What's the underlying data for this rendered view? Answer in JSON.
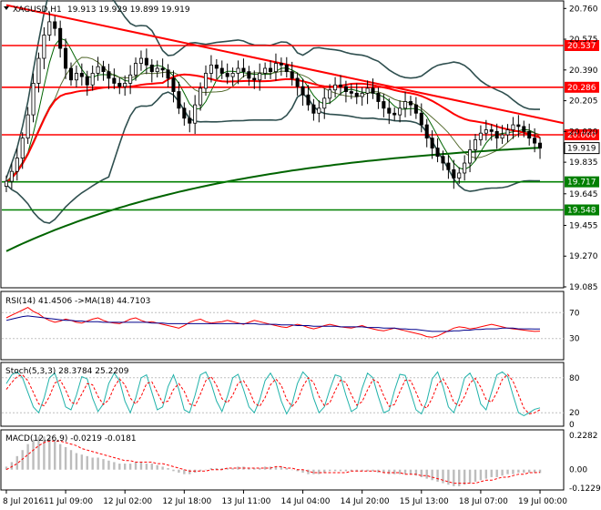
{
  "chart_data": [
    {
      "type": "candlestick",
      "panel": "price",
      "title": "XAGUSD,H1",
      "ohlc_readout": [
        "19.913",
        "19.929",
        "19.899",
        "19.919"
      ],
      "ylim": [
        19.085,
        20.8
      ],
      "y_ticks": [
        20.76,
        20.575,
        20.39,
        20.205,
        20.02,
        19.835,
        19.645,
        19.455,
        19.27,
        19.085
      ],
      "last_price_label": "19.919",
      "horizontal_levels": [
        {
          "label": "20.537",
          "value": 20.537,
          "color": "#ff0000"
        },
        {
          "label": "20.286",
          "value": 20.286,
          "color": "#ff0000"
        },
        {
          "label": "20.000",
          "value": 20.0,
          "color": "#ff0000"
        },
        {
          "label": "19.717",
          "value": 19.717,
          "color": "#008000"
        },
        {
          "label": "19.548",
          "value": 19.548,
          "color": "#008000"
        }
      ],
      "trendline": {
        "from": [
          0,
          20.78
        ],
        "to": [
          100,
          20.07
        ],
        "color": "#ff0000"
      },
      "close_series": [
        19.72,
        19.78,
        19.86,
        19.98,
        20.12,
        20.31,
        20.46,
        20.6,
        20.68,
        20.64,
        20.52,
        20.4,
        20.33,
        20.37,
        20.35,
        20.3,
        20.37,
        20.41,
        20.38,
        20.34,
        20.31,
        20.29,
        20.31,
        20.36,
        20.43,
        20.46,
        20.42,
        20.38,
        20.4,
        20.39,
        20.34,
        20.26,
        20.16,
        20.1,
        20.07,
        20.18,
        20.28,
        20.37,
        20.42,
        20.4,
        20.37,
        20.35,
        20.37,
        20.4,
        20.38,
        20.34,
        20.33,
        20.37,
        20.4,
        20.38,
        20.43,
        20.42,
        20.38,
        20.34,
        20.29,
        20.24,
        20.18,
        20.13,
        20.16,
        20.22,
        20.27,
        20.3,
        20.29,
        20.26,
        20.25,
        20.23,
        20.25,
        20.28,
        20.25,
        20.2,
        20.16,
        20.13,
        20.12,
        20.16,
        20.2,
        20.18,
        20.13,
        20.06,
        19.98,
        19.92,
        19.87,
        19.83,
        19.79,
        19.74,
        19.77,
        19.83,
        19.91,
        19.97,
        20.01,
        20.03,
        20.02,
        19.98,
        20.0,
        20.03,
        20.06,
        20.05,
        20.02,
        19.98,
        19.95,
        19.92
      ],
      "x_ticks": [
        {
          "index": 0,
          "label": "8 Jul 2016"
        },
        {
          "index": 11,
          "label": "11 Jul 09:00"
        },
        {
          "index": 22,
          "label": "12 Jul 02:00"
        },
        {
          "index": 33,
          "label": "12 Jul 18:00"
        },
        {
          "index": 44,
          "label": "13 Jul 11:00"
        },
        {
          "index": 55,
          "label": "14 Jul 04:00"
        },
        {
          "index": 66,
          "label": "14 Jul 20:00"
        },
        {
          "index": 77,
          "label": "15 Jul 13:00"
        },
        {
          "index": 88,
          "label": "18 Jul 07:00"
        },
        {
          "index": 99,
          "label": "19 Jul 00:00"
        }
      ],
      "colors": {
        "up": "#000000",
        "down": "#000000",
        "ma_fast": "#006400",
        "ma_slow": "#006400",
        "ma_red": "#ff0000",
        "bollinger": "#2f4f4f"
      }
    },
    {
      "type": "line",
      "panel": "rsi",
      "title": "RSI(14) 41.4506 ->MA(18) 44.7103",
      "ylim": [
        0,
        100
      ],
      "y_ticks": [
        70,
        30
      ],
      "levels": [
        70,
        30
      ],
      "series": [
        {
          "name": "RSI(14)",
          "color": "#ff0000",
          "values": [
            62,
            66,
            70,
            74,
            78,
            72,
            68,
            62,
            58,
            55,
            57,
            60,
            58,
            55,
            54,
            57,
            60,
            62,
            58,
            55,
            54,
            53,
            56,
            60,
            62,
            58,
            55,
            56,
            54,
            52,
            50,
            48,
            46,
            50,
            55,
            58,
            60,
            56,
            54,
            55,
            56,
            58,
            56,
            54,
            52,
            55,
            58,
            56,
            54,
            52,
            50,
            48,
            47,
            50,
            52,
            50,
            47,
            45,
            47,
            50,
            52,
            50,
            48,
            47,
            46,
            48,
            50,
            47,
            45,
            43,
            42,
            44,
            46,
            44,
            42,
            40,
            38,
            36,
            33,
            32,
            34,
            38,
            42,
            46,
            48,
            47,
            45,
            46,
            48,
            50,
            52,
            50,
            48,
            46,
            45,
            44,
            43,
            42,
            41,
            41.45
          ]
        },
        {
          "name": "MA(18)",
          "color": "#00008b",
          "values": [
            58,
            60,
            62,
            64,
            65,
            64,
            63,
            62,
            61,
            60,
            59,
            58,
            58,
            57,
            57,
            56,
            56,
            56,
            55,
            55,
            55,
            55,
            55,
            55,
            55,
            55,
            55,
            54,
            54,
            54,
            53,
            53,
            53,
            53,
            53,
            53,
            53,
            53,
            53,
            53,
            53,
            53,
            53,
            53,
            53,
            53,
            53,
            52,
            52,
            52,
            52,
            51,
            51,
            51,
            50,
            50,
            50,
            49,
            49,
            49,
            49,
            49,
            48,
            48,
            48,
            48,
            48,
            47,
            47,
            47,
            46,
            46,
            46,
            45,
            45,
            44,
            44,
            43,
            42,
            41,
            41,
            41,
            41,
            42,
            42,
            43,
            43,
            44,
            44,
            45,
            45,
            45,
            46,
            46,
            46,
            45,
            45,
            45,
            44.8,
            44.71
          ]
        }
      ]
    },
    {
      "type": "line",
      "panel": "stochastic",
      "title": "Stoch(5,3,3) 28.3784 25.2209",
      "ylim": [
        0,
        100
      ],
      "y_ticks": [
        80,
        20,
        0
      ],
      "levels": [
        80,
        20
      ],
      "series": [
        {
          "name": "%K",
          "color": "#20b2aa",
          "values": [
            70,
            85,
            90,
            80,
            55,
            30,
            20,
            45,
            80,
            88,
            60,
            30,
            25,
            50,
            82,
            78,
            45,
            22,
            35,
            70,
            88,
            75,
            40,
            20,
            45,
            80,
            85,
            55,
            25,
            30,
            65,
            85,
            60,
            25,
            20,
            50,
            85,
            90,
            70,
            40,
            22,
            48,
            80,
            86,
            60,
            30,
            20,
            42,
            75,
            88,
            72,
            40,
            18,
            35,
            70,
            90,
            80,
            45,
            20,
            30,
            60,
            85,
            82,
            50,
            22,
            28,
            62,
            88,
            80,
            48,
            20,
            24,
            58,
            86,
            84,
            55,
            25,
            18,
            40,
            78,
            90,
            65,
            30,
            20,
            45,
            80,
            88,
            70,
            35,
            25,
            55,
            85,
            90,
            82,
            50,
            20,
            15,
            20,
            26,
            28.38
          ]
        },
        {
          "name": "%D",
          "color": "#ff0000",
          "values": [
            60,
            72,
            82,
            85,
            75,
            55,
            35,
            32,
            48,
            71,
            76,
            59,
            38,
            35,
            52,
            70,
            68,
            48,
            34,
            42,
            64,
            78,
            68,
            45,
            35,
            48,
            70,
            73,
            55,
            37,
            40,
            60,
            70,
            57,
            35,
            32,
            52,
            75,
            82,
            67,
            44,
            37,
            50,
            71,
            75,
            59,
            37,
            31,
            46,
            68,
            78,
            67,
            43,
            31,
            41,
            65,
            80,
            72,
            48,
            32,
            37,
            58,
            76,
            72,
            51,
            33,
            39,
            59,
            77,
            72,
            49,
            31,
            34,
            56,
            76,
            75,
            55,
            33,
            28,
            45,
            69,
            78,
            62,
            38,
            32,
            48,
            71,
            79,
            64,
            43,
            38,
            55,
            77,
            86,
            74,
            51,
            28,
            18,
            20,
            25.22
          ]
        }
      ]
    },
    {
      "type": "bar",
      "panel": "macd",
      "title": "MACD(12,26,9) -0.0219 -0.0181",
      "ylim": [
        -0.1229,
        0.2282
      ],
      "y_ticks": [
        0.2282,
        0.0,
        -0.1229
      ],
      "y_tick_labels": [
        "0.2282",
        "0.00",
        "-0.1229"
      ],
      "histogram": [
        0.02,
        0.05,
        0.09,
        0.13,
        0.17,
        0.2,
        0.22,
        0.22,
        0.21,
        0.19,
        0.17,
        0.15,
        0.13,
        0.11,
        0.1,
        0.09,
        0.08,
        0.08,
        0.07,
        0.06,
        0.05,
        0.04,
        0.04,
        0.04,
        0.05,
        0.05,
        0.04,
        0.04,
        0.03,
        0.02,
        0.01,
        -0.01,
        -0.02,
        -0.03,
        -0.03,
        -0.02,
        -0.01,
        0.0,
        0.01,
        0.01,
        0.01,
        0.01,
        0.01,
        0.02,
        0.02,
        0.01,
        0.01,
        0.01,
        0.02,
        0.02,
        0.02,
        0.02,
        0.01,
        0.0,
        -0.01,
        -0.02,
        -0.03,
        -0.03,
        -0.03,
        -0.02,
        -0.01,
        -0.01,
        -0.01,
        -0.01,
        -0.01,
        -0.01,
        -0.01,
        -0.01,
        -0.01,
        -0.02,
        -0.02,
        -0.03,
        -0.03,
        -0.03,
        -0.03,
        -0.03,
        -0.04,
        -0.05,
        -0.06,
        -0.07,
        -0.08,
        -0.09,
        -0.1,
        -0.11,
        -0.11,
        -0.1,
        -0.09,
        -0.08,
        -0.07,
        -0.06,
        -0.05,
        -0.05,
        -0.04,
        -0.03,
        -0.03,
        -0.02,
        -0.02,
        -0.02,
        -0.02,
        -0.022
      ],
      "signal": [
        0.0,
        0.02,
        0.04,
        0.07,
        0.1,
        0.13,
        0.16,
        0.18,
        0.19,
        0.19,
        0.19,
        0.18,
        0.17,
        0.16,
        0.14,
        0.13,
        0.12,
        0.11,
        0.1,
        0.09,
        0.08,
        0.07,
        0.06,
        0.06,
        0.05,
        0.05,
        0.05,
        0.05,
        0.04,
        0.04,
        0.03,
        0.02,
        0.01,
        0.0,
        -0.01,
        -0.01,
        -0.01,
        -0.01,
        0.0,
        0.0,
        0.0,
        0.01,
        0.01,
        0.01,
        0.01,
        0.01,
        0.01,
        0.01,
        0.01,
        0.01,
        0.02,
        0.02,
        0.01,
        0.01,
        0.0,
        0.0,
        -0.01,
        -0.02,
        -0.02,
        -0.02,
        -0.02,
        -0.02,
        -0.02,
        -0.02,
        -0.01,
        -0.01,
        -0.01,
        -0.01,
        -0.01,
        -0.01,
        -0.02,
        -0.02,
        -0.02,
        -0.02,
        -0.03,
        -0.03,
        -0.03,
        -0.04,
        -0.04,
        -0.05,
        -0.06,
        -0.07,
        -0.08,
        -0.09,
        -0.09,
        -0.09,
        -0.09,
        -0.09,
        -0.08,
        -0.07,
        -0.07,
        -0.06,
        -0.05,
        -0.05,
        -0.04,
        -0.03,
        -0.03,
        -0.02,
        -0.02,
        -0.018
      ],
      "colors": {
        "histogram": "#bdbdbd",
        "signal": "#ff0000"
      }
    }
  ]
}
